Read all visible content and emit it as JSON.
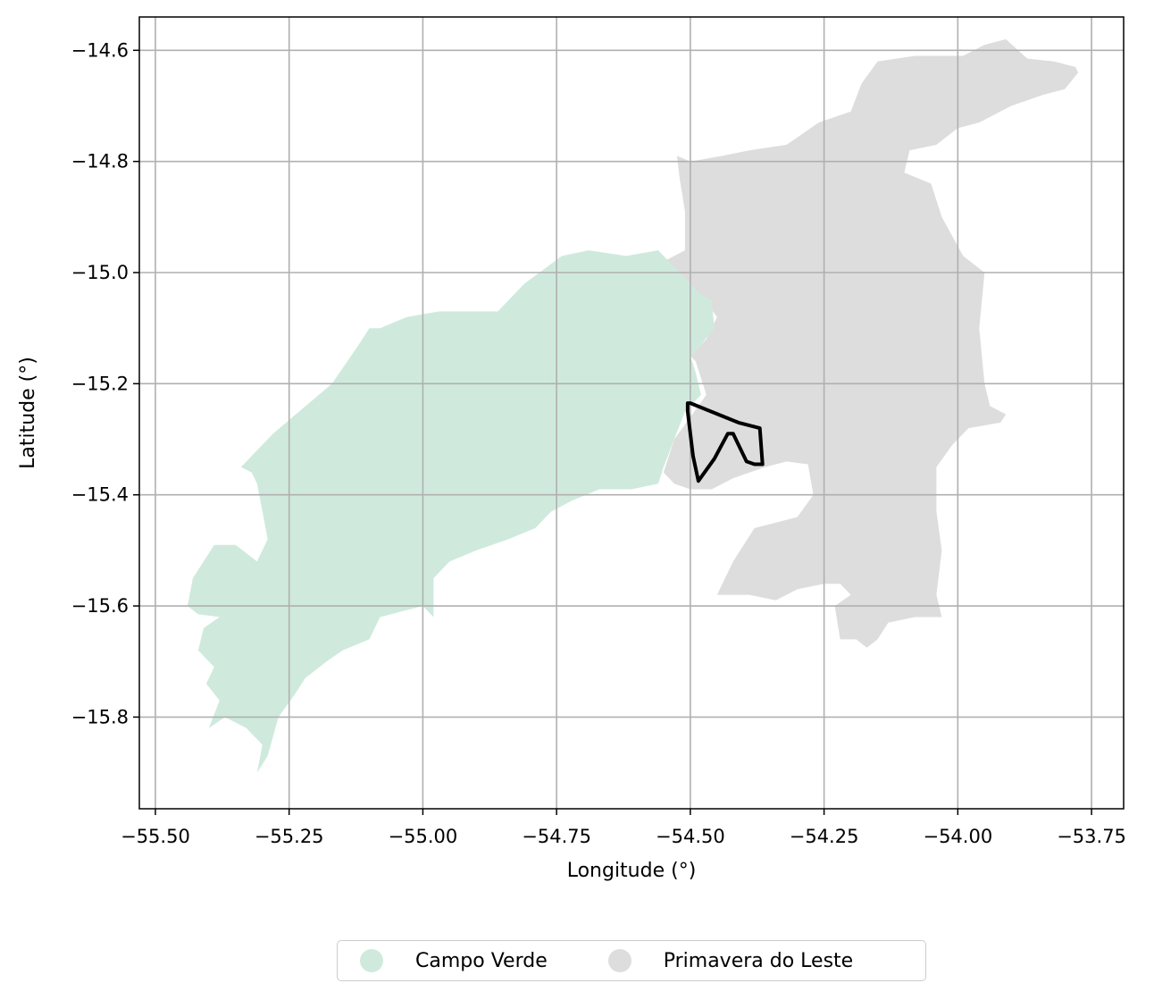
{
  "chart_data": {
    "type": "map",
    "xlabel": "Longitude (°)",
    "ylabel": "Latitude (°)",
    "xlim": [
      -55.53,
      -53.69
    ],
    "ylim": [
      -15.965,
      -14.54
    ],
    "xticks": [
      -55.5,
      -55.25,
      -55.0,
      -54.75,
      -54.5,
      -54.25,
      -54.0,
      -53.75
    ],
    "xtick_labels": [
      "−55.50",
      "−55.25",
      "−55.00",
      "−54.75",
      "−54.50",
      "−54.25",
      "−54.00",
      "−53.75"
    ],
    "yticks": [
      -14.6,
      -14.8,
      -15.0,
      -15.2,
      -15.4,
      -15.6,
      -15.8
    ],
    "ytick_labels": [
      "−14.6",
      "−14.8",
      "−15.0",
      "−15.2",
      "−15.4",
      "−15.6",
      "−15.8"
    ],
    "grid": true,
    "legend_placement": "bottom-center",
    "regions": [
      {
        "name": "Primavera do Leste",
        "color": "#dddddd",
        "polygons": [
          [
            [
              -54.62,
              -15.02
            ],
            [
              -54.58,
              -14.99
            ],
            [
              -54.55,
              -14.98
            ],
            [
              -54.51,
              -14.96
            ],
            [
              -54.51,
              -14.89
            ],
            [
              -54.52,
              -14.83
            ],
            [
              -54.525,
              -14.79
            ],
            [
              -54.5,
              -14.8
            ],
            [
              -54.44,
              -14.79
            ],
            [
              -54.39,
              -14.78
            ],
            [
              -54.32,
              -14.77
            ],
            [
              -54.26,
              -14.73
            ],
            [
              -54.2,
              -14.71
            ],
            [
              -54.18,
              -14.66
            ],
            [
              -54.15,
              -14.62
            ],
            [
              -54.08,
              -14.61
            ],
            [
              -54.03,
              -14.61
            ],
            [
              -53.99,
              -14.61
            ],
            [
              -53.95,
              -14.59
            ],
            [
              -53.91,
              -14.58
            ],
            [
              -53.87,
              -14.615
            ],
            [
              -53.82,
              -14.62
            ],
            [
              -53.78,
              -14.63
            ],
            [
              -53.775,
              -14.64
            ],
            [
              -53.8,
              -14.67
            ],
            [
              -53.84,
              -14.68
            ],
            [
              -53.9,
              -14.7
            ],
            [
              -53.96,
              -14.73
            ],
            [
              -54.0,
              -14.74
            ],
            [
              -54.04,
              -14.77
            ],
            [
              -54.09,
              -14.78
            ],
            [
              -54.1,
              -14.82
            ],
            [
              -54.05,
              -14.84
            ],
            [
              -54.03,
              -14.9
            ],
            [
              -53.99,
              -14.97
            ],
            [
              -53.95,
              -15.0
            ],
            [
              -53.96,
              -15.1
            ],
            [
              -53.95,
              -15.2
            ],
            [
              -53.94,
              -15.24
            ],
            [
              -53.91,
              -15.255
            ],
            [
              -53.92,
              -15.27
            ],
            [
              -53.98,
              -15.28
            ],
            [
              -54.01,
              -15.31
            ],
            [
              -54.04,
              -15.35
            ],
            [
              -54.04,
              -15.43
            ],
            [
              -54.03,
              -15.5
            ],
            [
              -54.04,
              -15.58
            ],
            [
              -54.03,
              -15.62
            ],
            [
              -54.08,
              -15.62
            ],
            [
              -54.13,
              -15.63
            ],
            [
              -54.15,
              -15.66
            ],
            [
              -54.17,
              -15.675
            ],
            [
              -54.19,
              -15.66
            ],
            [
              -54.22,
              -15.66
            ],
            [
              -54.23,
              -15.6
            ],
            [
              -54.2,
              -15.58
            ],
            [
              -54.22,
              -15.56
            ],
            [
              -54.25,
              -15.56
            ],
            [
              -54.3,
              -15.57
            ],
            [
              -54.34,
              -15.59
            ],
            [
              -54.39,
              -15.58
            ],
            [
              -54.45,
              -15.58
            ],
            [
              -54.42,
              -15.52
            ],
            [
              -54.38,
              -15.46
            ],
            [
              -54.3,
              -15.44
            ],
            [
              -54.27,
              -15.4
            ],
            [
              -54.28,
              -15.345
            ],
            [
              -54.32,
              -15.34
            ],
            [
              -54.36,
              -15.35
            ],
            [
              -54.42,
              -15.37
            ],
            [
              -54.46,
              -15.39
            ],
            [
              -54.5,
              -15.39
            ],
            [
              -54.53,
              -15.38
            ],
            [
              -54.55,
              -15.36
            ],
            [
              -54.53,
              -15.3
            ],
            [
              -54.5,
              -15.26
            ],
            [
              -54.47,
              -15.22
            ],
            [
              -54.49,
              -15.16
            ],
            [
              -54.5,
              -15.15
            ],
            [
              -54.47,
              -15.12
            ],
            [
              -54.45,
              -15.08
            ],
            [
              -54.48,
              -15.04
            ],
            [
              -54.52,
              -15.04
            ],
            [
              -54.56,
              -15.03
            ]
          ]
        ]
      },
      {
        "name": "Campo Verde",
        "color": "#cfeadd",
        "polygons": [
          [
            [
              -55.34,
              -15.35
            ],
            [
              -55.28,
              -15.29
            ],
            [
              -55.17,
              -15.2
            ],
            [
              -55.12,
              -15.13
            ],
            [
              -55.1,
              -15.1
            ],
            [
              -55.08,
              -15.1
            ],
            [
              -55.03,
              -15.08
            ],
            [
              -54.97,
              -15.07
            ],
            [
              -54.86,
              -15.07
            ],
            [
              -54.81,
              -15.02
            ],
            [
              -54.74,
              -14.97
            ],
            [
              -54.69,
              -14.96
            ],
            [
              -54.62,
              -14.97
            ],
            [
              -54.56,
              -14.96
            ],
            [
              -54.53,
              -14.99
            ],
            [
              -54.5,
              -15.02
            ],
            [
              -54.48,
              -15.04
            ],
            [
              -54.46,
              -15.05
            ],
            [
              -54.455,
              -15.1
            ],
            [
              -54.48,
              -15.13
            ],
            [
              -54.5,
              -15.15
            ],
            [
              -54.49,
              -15.18
            ],
            [
              -54.48,
              -15.22
            ],
            [
              -54.51,
              -15.25
            ],
            [
              -54.53,
              -15.3
            ],
            [
              -54.55,
              -15.35
            ],
            [
              -54.56,
              -15.38
            ],
            [
              -54.61,
              -15.39
            ],
            [
              -54.67,
              -15.39
            ],
            [
              -54.72,
              -15.41
            ],
            [
              -54.76,
              -15.43
            ],
            [
              -54.79,
              -15.46
            ],
            [
              -54.84,
              -15.48
            ],
            [
              -54.9,
              -15.5
            ],
            [
              -54.95,
              -15.52
            ],
            [
              -54.98,
              -15.55
            ],
            [
              -54.98,
              -15.6
            ],
            [
              -54.98,
              -15.62
            ],
            [
              -55.0,
              -15.6
            ],
            [
              -55.04,
              -15.61
            ],
            [
              -55.08,
              -15.62
            ],
            [
              -55.1,
              -15.66
            ],
            [
              -55.15,
              -15.68
            ],
            [
              -55.18,
              -15.7
            ],
            [
              -55.22,
              -15.73
            ],
            [
              -55.24,
              -15.76
            ],
            [
              -55.27,
              -15.8
            ],
            [
              -55.29,
              -15.87
            ],
            [
              -55.31,
              -15.9
            ],
            [
              -55.3,
              -15.85
            ],
            [
              -55.33,
              -15.82
            ],
            [
              -55.37,
              -15.8
            ],
            [
              -55.4,
              -15.82
            ],
            [
              -55.38,
              -15.77
            ],
            [
              -55.405,
              -15.74
            ],
            [
              -55.39,
              -15.71
            ],
            [
              -55.42,
              -15.68
            ],
            [
              -55.41,
              -15.64
            ],
            [
              -55.38,
              -15.62
            ],
            [
              -55.42,
              -15.615
            ],
            [
              -55.44,
              -15.6
            ],
            [
              -55.43,
              -15.55
            ],
            [
              -55.39,
              -15.49
            ],
            [
              -55.35,
              -15.49
            ],
            [
              -55.31,
              -15.52
            ],
            [
              -55.29,
              -15.48
            ],
            [
              -55.3,
              -15.43
            ],
            [
              -55.31,
              -15.38
            ],
            [
              -55.32,
              -15.36
            ]
          ]
        ]
      }
    ],
    "boundary_line": {
      "color": "#000000",
      "points": [
        [
          -54.505,
          -15.235
        ],
        [
          -54.5,
          -15.235
        ],
        [
          -54.41,
          -15.27
        ],
        [
          -54.37,
          -15.28
        ],
        [
          -54.365,
          -15.345
        ],
        [
          -54.38,
          -15.345
        ],
        [
          -54.395,
          -15.34
        ],
        [
          -54.41,
          -15.31
        ],
        [
          -54.42,
          -15.29
        ],
        [
          -54.43,
          -15.29
        ],
        [
          -54.455,
          -15.335
        ],
        [
          -54.485,
          -15.375
        ],
        [
          -54.495,
          -15.33
        ],
        [
          -54.505,
          -15.25
        ],
        [
          -54.505,
          -15.235
        ]
      ]
    },
    "legend": [
      {
        "label": "Campo Verde",
        "color": "#cfeadd"
      },
      {
        "label": "Primavera do Leste",
        "color": "#dddddd"
      }
    ]
  }
}
